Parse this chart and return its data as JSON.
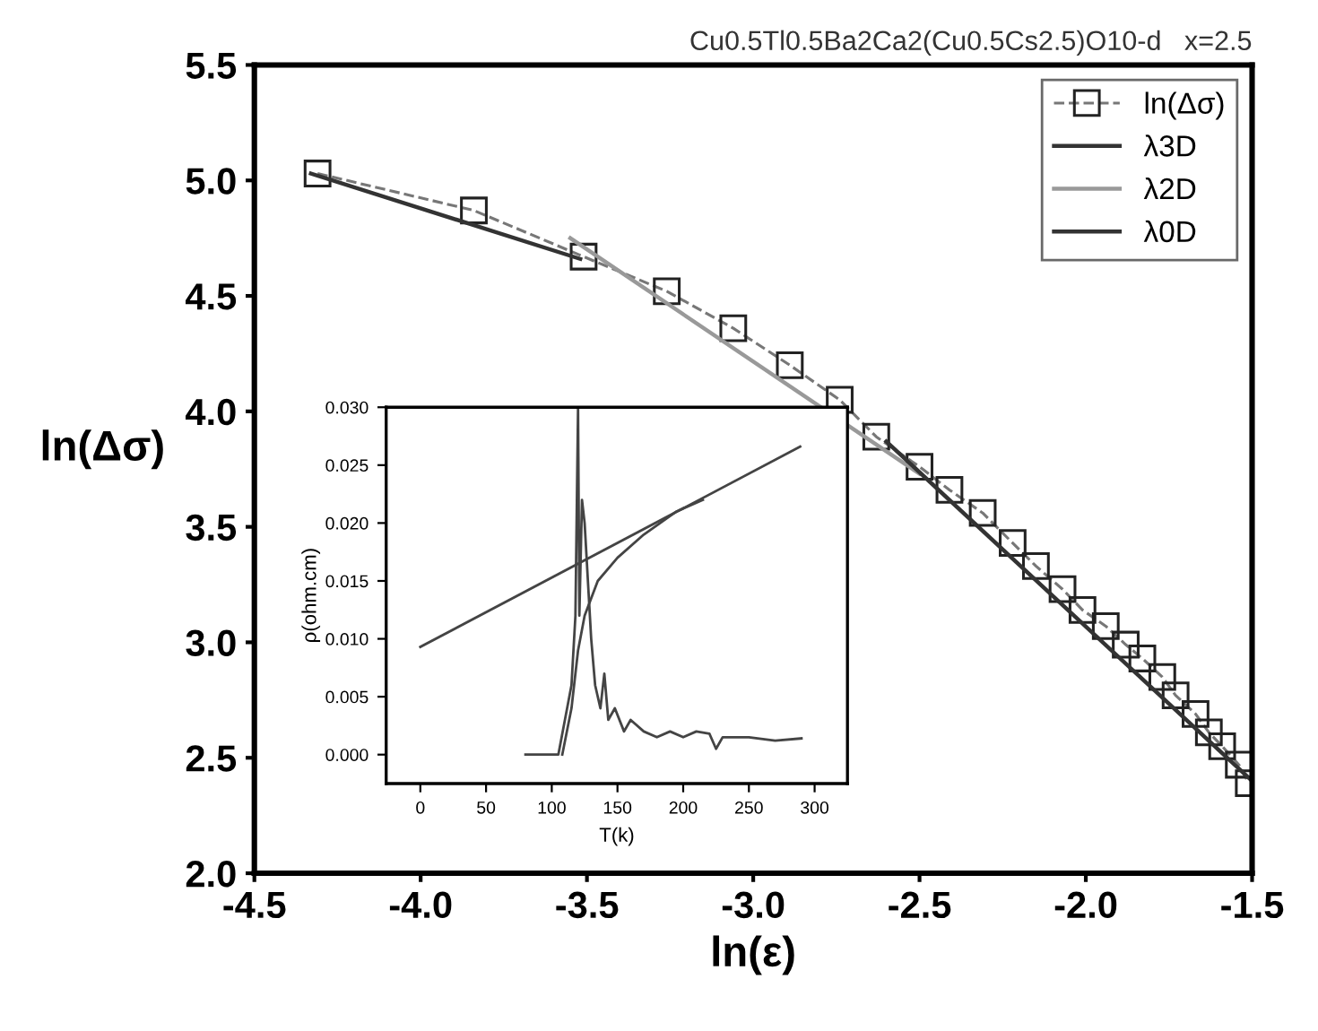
{
  "chart_data": [
    {
      "type": "line",
      "title": "Cu0.5Tl0.5Ba2Ca2(Cu0.5Cs2.5)O10-d   x=2.5",
      "xlabel": "ln(ε)",
      "ylabel": "ln(Δσ)",
      "xlim": [
        -4.5,
        -1.5
      ],
      "ylim": [
        2.0,
        5.5
      ],
      "xticks": [
        -4.5,
        {
          "value": -4,
          "label": "-4.0"
        },
        -3.5,
        {
          "value": -3,
          "label": "-3.0"
        },
        -2.5,
        {
          "value": -2,
          "label": "-2.0"
        },
        -1.5
      ],
      "yticks": [
        {
          "value": 2,
          "label": "2.0"
        },
        2.5,
        {
          "value": 3,
          "label": "3.0"
        },
        3.5,
        {
          "value": 4,
          "label": "4.0"
        },
        4.5,
        {
          "value": 5,
          "label": "5.0"
        },
        5.5
      ],
      "grid": false,
      "legend": "top right",
      "series": [
        {
          "name": "ln(Δσ)",
          "color": "#777777",
          "marker": "square",
          "line_style": "dashed",
          "x": [
            -4.31,
            -3.84,
            -3.51,
            -3.26,
            -3.06,
            -2.89,
            -2.74,
            -2.63,
            -2.5,
            -2.41,
            -2.31,
            -2.22,
            -2.15,
            -2.07,
            -2.01,
            -1.94,
            -1.88,
            -1.83,
            -1.77,
            -1.73,
            -1.67,
            -1.63,
            -1.59,
            -1.54,
            -1.51
          ],
          "values": [
            5.03,
            4.87,
            4.67,
            4.52,
            4.36,
            4.2,
            4.05,
            3.89,
            3.76,
            3.66,
            3.56,
            3.43,
            3.33,
            3.23,
            3.14,
            3.07,
            2.99,
            2.93,
            2.85,
            2.77,
            2.69,
            2.61,
            2.55,
            2.47,
            2.39
          ]
        },
        {
          "name": "λ3D",
          "color": "#333333",
          "marker": "none",
          "line_style": "solid",
          "x": [
            -4.33,
            -3.52
          ],
          "values": [
            5.03,
            4.66
          ]
        },
        {
          "name": "λ2D",
          "color": "#999999",
          "marker": "none",
          "line_style": "solid",
          "x": [
            -3.55,
            -2.5
          ],
          "values": [
            4.75,
            3.73
          ]
        },
        {
          "name": "λ0D",
          "color": "#333333",
          "marker": "none",
          "line_style": "solid",
          "x": [
            -2.6,
            -1.5
          ],
          "values": [
            3.87,
            2.4
          ]
        }
      ]
    },
    {
      "type": "line",
      "xlabel": "T(k)",
      "ylabel": "ρ(ohm.cm)",
      "xlim": [
        -26,
        325
      ],
      "ylim": [
        -0.0025,
        0.03
      ],
      "xticks": [
        0,
        50,
        100,
        150,
        200,
        250,
        300
      ],
      "yticks": [
        {
          "value": 0,
          "label": "0.000"
        },
        {
          "value": 0.005,
          "label": "0.005"
        },
        {
          "value": 0.01,
          "label": "0.010"
        },
        {
          "value": 0.015,
          "label": "0.015"
        },
        {
          "value": 0.02,
          "label": "0.020"
        },
        {
          "value": 0.025,
          "label": "0.025"
        },
        {
          "value": 0.03,
          "label": "0.030"
        }
      ],
      "grid": false,
      "legend": false,
      "series": [
        {
          "color": "#444444",
          "marker": "none",
          "line_style": "solid",
          "x": [
            0,
            289
          ],
          "values": [
            0.0093,
            0.0266
          ]
        },
        {
          "color": "#444444",
          "marker": "none",
          "line_style": "solid",
          "x": [
            108,
            115,
            120,
            125,
            135,
            150,
            170,
            195,
            215
          ],
          "values": [
            0,
            0.004,
            0.009,
            0.012,
            0.015,
            0.017,
            0.019,
            0.021,
            0.022
          ]
        },
        {
          "color": "#444444",
          "marker": "none",
          "line_style": "solid",
          "x": [
            80,
            105,
            110,
            115,
            118,
            120,
            121,
            123,
            125,
            128,
            130,
            133,
            137,
            140,
            143,
            148,
            155,
            160,
            170,
            180,
            190,
            200,
            210,
            220,
            225,
            230,
            250,
            270,
            290
          ],
          "values": [
            0,
            0,
            0.003,
            0.006,
            0.012,
            0.03,
            0.012,
            0.022,
            0.02,
            0.014,
            0.01,
            0.006,
            0.004,
            0.007,
            0.003,
            0.004,
            0.002,
            0.003,
            0.002,
            0.0015,
            0.002,
            0.0015,
            0.002,
            0.0018,
            0.0005,
            0.0015,
            0.0015,
            0.0012,
            0.0014
          ]
        }
      ]
    }
  ]
}
